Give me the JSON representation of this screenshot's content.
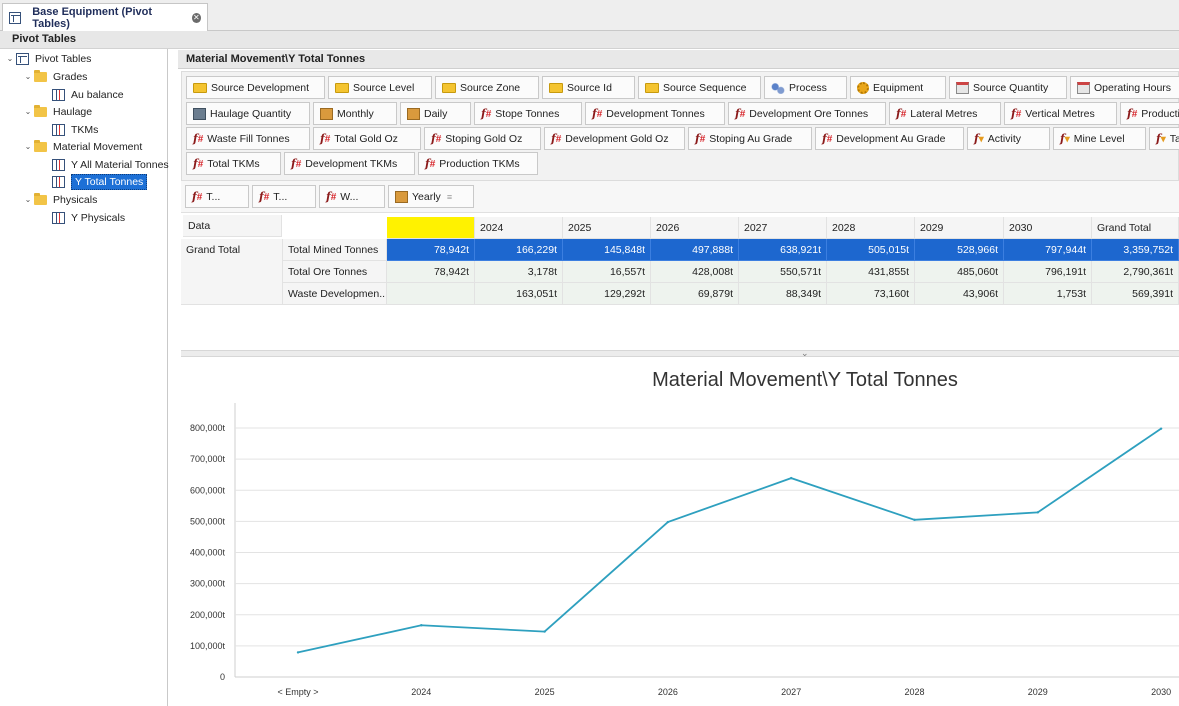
{
  "document_tab": {
    "label": "Base Equipment (Pivot Tables)"
  },
  "left_panel": {
    "title": "Pivot Tables",
    "tree": {
      "root": "Pivot Tables",
      "grades": "Grades",
      "au_balance": "Au balance",
      "haulage": "Haulage",
      "tkms": "TKMs",
      "material_movement": "Material Movement",
      "y_all_material": "Y All Material Tonnes",
      "y_total_tonnes": "Y Total Tonnes",
      "physicals": "Physicals",
      "y_physicals": "Y Physicals"
    }
  },
  "content": {
    "title": "Material Movement\\Y Total Tonnes",
    "fields": {
      "row1": [
        "Source Development",
        "Source Level",
        "Source Zone",
        "Source Id",
        "Source Sequence",
        "Process",
        "Equipment",
        "Source Quantity",
        "Operating Hours"
      ],
      "row2": [
        "Haulage Quantity",
        "Monthly",
        "Daily",
        "Stope Tonnes",
        "Development Tonnes",
        "Development Ore Tonnes",
        "Lateral Metres",
        "Vertical Metres",
        "Production"
      ],
      "row3": [
        "Waste Fill Tonnes",
        "Total Gold Oz",
        "Stoping Gold Oz",
        "Development Gold Oz",
        "Stoping Au Grade",
        "Development Au Grade",
        "Activity",
        "Mine Level",
        "Ta"
      ],
      "row4": [
        "Total TKMs",
        "Development TKMs",
        "Production TKMs"
      ]
    },
    "filters": [
      "T...",
      "T...",
      "W...",
      "Yearly"
    ],
    "pivot": {
      "data_label": "Data",
      "grand_total_label": "Grand Total",
      "columns": [
        "",
        "2024",
        "2025",
        "2026",
        "2027",
        "2028",
        "2029",
        "2030",
        "Grand Total"
      ],
      "rows": [
        {
          "label": "Total Mined Tonnes",
          "values": [
            "78,942t",
            "166,229t",
            "145,848t",
            "497,888t",
            "638,921t",
            "505,015t",
            "528,966t",
            "797,944t",
            "3,359,752t"
          ]
        },
        {
          "label": "Total Ore Tonnes",
          "values": [
            "78,942t",
            "3,178t",
            "16,557t",
            "428,008t",
            "550,571t",
            "431,855t",
            "485,060t",
            "796,191t",
            "2,790,361t"
          ]
        },
        {
          "label": "Waste Developmen...",
          "values": [
            "",
            "163,051t",
            "129,292t",
            "69,879t",
            "88,349t",
            "73,160t",
            "43,906t",
            "1,753t",
            "569,391t"
          ]
        }
      ]
    }
  },
  "chart_data": {
    "type": "line",
    "title": "Material Movement\\Y Total Tonnes",
    "categories": [
      "< Empty >",
      "2024",
      "2025",
      "2026",
      "2027",
      "2028",
      "2029",
      "2030"
    ],
    "series": [
      {
        "values": [
          78942,
          166229,
          145848,
          497888,
          638921,
          505015,
          528966,
          797944
        ],
        "color": "#2ea0bf"
      }
    ],
    "y_ticks": [
      "0",
      "100,000t",
      "200,000t",
      "300,000t",
      "400,000t",
      "500,000t",
      "600,000t",
      "700,000t",
      "800,000t"
    ],
    "ylim": [
      0,
      800000
    ],
    "grid": true,
    "xlabel": "",
    "ylabel": ""
  }
}
